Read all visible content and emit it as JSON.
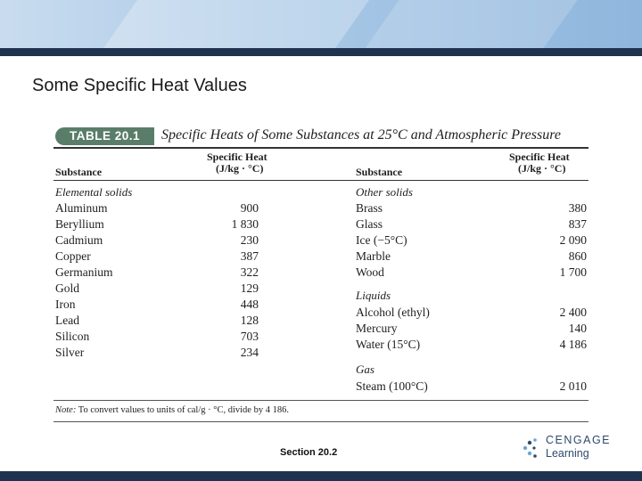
{
  "slide": {
    "title": "Some Specific Heat Values",
    "footer": "Section 20.2",
    "logo_line1": "CENGAGE",
    "logo_line2": "Learning"
  },
  "table": {
    "badge": "TABLE 20.1",
    "caption": "Specific Heats of Some Substances at 25°C and Atmospheric Pressure",
    "col_substance": "Substance",
    "col_heat_1": "Specific Heat",
    "col_heat_2": "(J/kg · °C)",
    "left_category": "Elemental solids",
    "left_rows": [
      {
        "name": "Aluminum",
        "value": "900"
      },
      {
        "name": "Beryllium",
        "value": "1 830"
      },
      {
        "name": "Cadmium",
        "value": "230"
      },
      {
        "name": "Copper",
        "value": "387"
      },
      {
        "name": "Germanium",
        "value": "322"
      },
      {
        "name": "Gold",
        "value": "129"
      },
      {
        "name": "Iron",
        "value": "448"
      },
      {
        "name": "Lead",
        "value": "128"
      },
      {
        "name": "Silicon",
        "value": "703"
      },
      {
        "name": "Silver",
        "value": "234"
      }
    ],
    "right_category_1": "Other solids",
    "right_rows_1": [
      {
        "name": "Brass",
        "value": "380"
      },
      {
        "name": "Glass",
        "value": "837"
      },
      {
        "name": "Ice (−5°C)",
        "value": "2 090"
      },
      {
        "name": "Marble",
        "value": "860"
      },
      {
        "name": "Wood",
        "value": "1 700"
      }
    ],
    "right_category_2": "Liquids",
    "right_rows_2": [
      {
        "name": "Alcohol (ethyl)",
        "value": "2 400"
      },
      {
        "name": "Mercury",
        "value": "140"
      },
      {
        "name": "Water (15°C)",
        "value": "4 186"
      }
    ],
    "right_category_3": "Gas",
    "right_rows_3": [
      {
        "name": "Steam (100°C)",
        "value": "2 010"
      }
    ],
    "note_label": "Note:",
    "note_text": "To convert values to units of cal/g · °C, divide by 4 186."
  }
}
